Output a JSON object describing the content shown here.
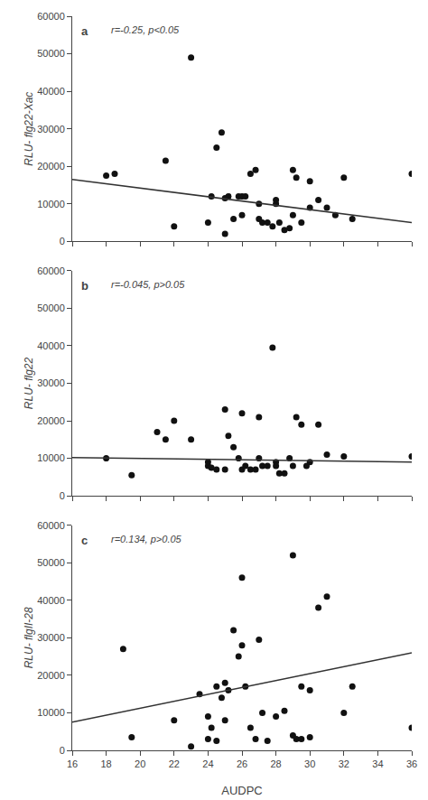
{
  "chart_data": [
    {
      "type": "scatter",
      "ylabel": "RLU- flg22-Xac",
      "annotations": [
        "a",
        "r=-0.25, p<0.05"
      ],
      "xlim": [
        16,
        36
      ],
      "ylim": [
        0,
        60000
      ],
      "xticks": [
        16,
        18,
        20,
        22,
        24,
        26,
        28,
        30,
        32,
        34,
        36
      ],
      "yticks": [
        0,
        10000,
        20000,
        30000,
        40000,
        50000,
        60000
      ],
      "grid": false,
      "tick_labels": "y",
      "series": [
        {
          "type": "scatter",
          "marker": "circle",
          "color": "#111111",
          "x": [
            18.0,
            18.5,
            21.5,
            22.0,
            23.0,
            24.0,
            24.2,
            24.5,
            24.8,
            25.0,
            25.0,
            25.2,
            25.5,
            25.8,
            26.0,
            26.0,
            26.2,
            26.5,
            26.8,
            27.0,
            27.0,
            27.2,
            27.5,
            27.8,
            28.0,
            28.0,
            28.2,
            28.5,
            28.8,
            29.0,
            29.0,
            29.2,
            29.5,
            30.0,
            30.0,
            30.5,
            31.0,
            31.5,
            32.0,
            32.5,
            36.0
          ],
          "values": [
            17500,
            18000,
            21500,
            4000,
            49000,
            5000,
            12000,
            25000,
            29000,
            11500,
            2000,
            12000,
            6000,
            12000,
            7000,
            12000,
            12000,
            18000,
            19000,
            10000,
            6000,
            5000,
            5000,
            4000,
            11000,
            10000,
            5000,
            3000,
            3500,
            7000,
            19000,
            17000,
            5000,
            9000,
            16000,
            11000,
            9000,
            7000,
            17000,
            6000,
            18000
          ]
        },
        {
          "type": "line",
          "line_style": "solid",
          "color": "#333333",
          "x": [
            16,
            36
          ],
          "values": [
            16500,
            5000
          ]
        }
      ]
    },
    {
      "type": "scatter",
      "ylabel": "RLU- flg22",
      "annotations": [
        "b",
        "r=-0.045, p>0.05"
      ],
      "xlim": [
        16,
        36
      ],
      "ylim": [
        0,
        60000
      ],
      "xticks": [
        16,
        18,
        20,
        22,
        24,
        26,
        28,
        30,
        32,
        34,
        36
      ],
      "yticks": [
        0,
        10000,
        20000,
        30000,
        40000,
        50000,
        60000
      ],
      "grid": false,
      "tick_labels": "y",
      "series": [
        {
          "type": "scatter",
          "marker": "circle",
          "color": "#111111",
          "x": [
            18.0,
            19.5,
            21.0,
            21.5,
            22.0,
            23.0,
            24.0,
            24.0,
            24.2,
            24.5,
            25.0,
            25.0,
            25.2,
            25.5,
            25.8,
            26.0,
            26.0,
            26.2,
            26.5,
            26.8,
            27.0,
            27.0,
            27.2,
            27.5,
            27.8,
            28.0,
            28.0,
            28.2,
            28.5,
            28.8,
            29.0,
            29.2,
            29.5,
            29.8,
            30.0,
            30.5,
            31.0,
            32.0,
            36.0
          ],
          "values": [
            10000,
            5500,
            17000,
            15000,
            20000,
            15000,
            8000,
            9000,
            7500,
            7000,
            7000,
            23000,
            16000,
            13000,
            10000,
            7000,
            22000,
            8000,
            7000,
            7000,
            10000,
            21000,
            8000,
            8000,
            39500,
            9000,
            8000,
            6000,
            6000,
            10000,
            8000,
            21000,
            19000,
            8000,
            9000,
            19000,
            11000,
            10500,
            10500
          ]
        },
        {
          "type": "line",
          "line_style": "solid",
          "color": "#333333",
          "x": [
            16,
            36
          ],
          "values": [
            10200,
            9000
          ]
        }
      ]
    },
    {
      "type": "scatter",
      "ylabel": "RLU- flgII-28",
      "xlabel": "AUDPC",
      "annotations": [
        "c",
        "r=0.134, p>0.05"
      ],
      "xlim": [
        16,
        36
      ],
      "ylim": [
        0,
        60000
      ],
      "xticks": [
        16,
        18,
        20,
        22,
        24,
        26,
        28,
        30,
        32,
        34,
        36
      ],
      "yticks": [
        0,
        10000,
        20000,
        30000,
        40000,
        50000,
        60000
      ],
      "grid": false,
      "series": [
        {
          "type": "scatter",
          "marker": "circle",
          "color": "#111111",
          "x": [
            19.0,
            19.5,
            22.0,
            23.0,
            23.5,
            24.0,
            24.0,
            24.2,
            24.5,
            24.5,
            24.8,
            25.0,
            25.0,
            25.2,
            25.5,
            25.8,
            26.0,
            26.0,
            26.2,
            26.5,
            26.8,
            27.0,
            27.2,
            27.5,
            28.0,
            28.5,
            29.0,
            29.0,
            29.2,
            29.5,
            29.5,
            30.0,
            30.0,
            30.5,
            31.0,
            32.0,
            32.5,
            36.0
          ],
          "values": [
            27000,
            3500,
            8000,
            1000,
            15000,
            9000,
            3000,
            6000,
            2500,
            17000,
            14000,
            18000,
            8000,
            16000,
            32000,
            25000,
            46000,
            28000,
            17000,
            6000,
            3000,
            29500,
            10000,
            2500,
            9000,
            10500,
            52000,
            4000,
            3000,
            3000,
            17000,
            3500,
            16000,
            38000,
            41000,
            10000,
            17000,
            6000
          ]
        },
        {
          "type": "line",
          "line_style": "solid",
          "color": "#333333",
          "x": [
            16,
            36
          ],
          "values": [
            7500,
            26000
          ]
        }
      ]
    }
  ]
}
